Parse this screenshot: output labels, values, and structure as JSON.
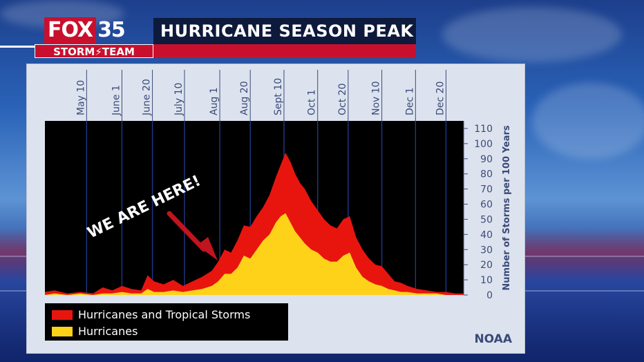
{
  "branding": {
    "logo_fox": "FOX",
    "logo_number": "35",
    "logo_sub": "STORM⚡TEAM",
    "headline": "HURRICANE SEASON PEAK"
  },
  "annotation": {
    "text": "WE ARE HERE!",
    "arrow_color": "#c0141e"
  },
  "source": "NOAA",
  "colors": {
    "storms": "#e8150f",
    "hurricanes": "#ffd21a",
    "plot_bg": "#000000",
    "axis_text": "#3a4a7a"
  },
  "chart_data": {
    "type": "area",
    "title": "",
    "ylabel": "Number of Storms per 100 Years",
    "xlabel": "",
    "x_ticks": [
      "May 10",
      "June 1",
      "June 20",
      "July 10",
      "Aug 1",
      "Aug 20",
      "Sept 10",
      "Oct 1",
      "Oct 20",
      "Nov 10",
      "Dec 1",
      "Dec 20"
    ],
    "x_tick_days": [
      130,
      152,
      171,
      191,
      213,
      232,
      253,
      274,
      293,
      314,
      335,
      354
    ],
    "xlim": [
      104,
      365
    ],
    "ylim": [
      0,
      115
    ],
    "y_ticks": [
      0,
      10,
      20,
      30,
      40,
      50,
      60,
      70,
      80,
      90,
      100,
      110
    ],
    "grid": "vertical",
    "legend_position": "bottom-left",
    "series": [
      {
        "name": "Hurricanes and Tropical Storms",
        "color": "#e8150f",
        "x": [
          104,
          110,
          118,
          126,
          134,
          140,
          146,
          152,
          158,
          164,
          168,
          172,
          178,
          184,
          190,
          196,
          202,
          208,
          212,
          216,
          220,
          224,
          228,
          232,
          236,
          240,
          244,
          248,
          251,
          254,
          257,
          260,
          263,
          266,
          270,
          274,
          278,
          282,
          286,
          290,
          294,
          298,
          302,
          306,
          310,
          314,
          318,
          322,
          326,
          330,
          336,
          342,
          348,
          354,
          360,
          365
        ],
        "y": [
          2,
          3,
          1,
          2,
          1,
          5,
          3,
          6,
          4,
          3,
          13,
          9,
          7,
          10,
          6,
          9,
          12,
          16,
          22,
          30,
          28,
          36,
          46,
          45,
          52,
          58,
          66,
          78,
          86,
          94,
          88,
          80,
          74,
          70,
          62,
          56,
          50,
          46,
          44,
          50,
          52,
          38,
          30,
          24,
          20,
          19,
          14,
          9,
          8,
          6,
          4,
          3,
          2,
          2,
          1,
          1
        ]
      },
      {
        "name": "Hurricanes",
        "color": "#ffd21a",
        "x": [
          104,
          110,
          118,
          126,
          134,
          140,
          146,
          152,
          158,
          164,
          168,
          172,
          178,
          184,
          190,
          196,
          202,
          208,
          212,
          216,
          220,
          224,
          228,
          232,
          236,
          240,
          244,
          248,
          251,
          254,
          257,
          260,
          263,
          266,
          270,
          274,
          278,
          282,
          286,
          290,
          294,
          298,
          302,
          306,
          310,
          314,
          318,
          322,
          326,
          330,
          336,
          342,
          348,
          354,
          360,
          365
        ],
        "y": [
          0,
          1,
          0,
          1,
          0,
          1,
          1,
          2,
          1,
          1,
          4,
          2,
          2,
          3,
          2,
          3,
          4,
          6,
          9,
          14,
          14,
          18,
          26,
          24,
          30,
          36,
          40,
          48,
          52,
          54,
          48,
          42,
          38,
          34,
          30,
          28,
          24,
          22,
          22,
          26,
          28,
          18,
          12,
          9,
          7,
          6,
          4,
          3,
          2,
          2,
          1,
          1,
          1,
          0,
          0,
          0
        ]
      }
    ]
  }
}
